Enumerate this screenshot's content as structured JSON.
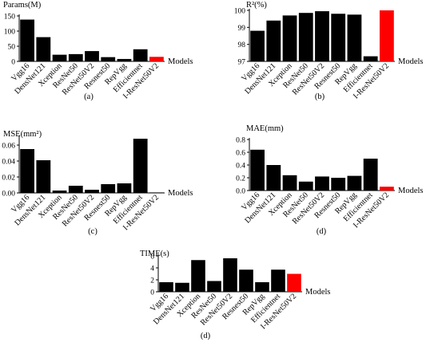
{
  "chart_data": [
    {
      "id": "params",
      "type": "bar",
      "title": "Params(M)",
      "xlabel": "Models",
      "panel_label": "(a)",
      "categories": [
        "Vgg16",
        "DensNet121",
        "Xception",
        "ResNet50",
        "ResNet50V2",
        "Resnest50",
        "RepVgg",
        "Efficientnet",
        "I-ResNet50V2"
      ],
      "values": [
        138,
        80,
        22,
        24,
        34,
        14,
        8,
        40,
        15
      ],
      "ylim": [
        0,
        150
      ],
      "yticks": [
        0,
        50,
        100,
        150
      ],
      "highlight_color": "#ff0000",
      "highlight_index": 8,
      "bar_color": "#000000"
    },
    {
      "id": "r2",
      "type": "bar",
      "title": "R²(%)",
      "xlabel": "Models",
      "panel_label": "(b)",
      "categories": [
        "Vgg16",
        "DensNet121",
        "Xception",
        "ResNet50",
        "ResNet50V2",
        "Resnest50",
        "RepVgg",
        "Efficientnet",
        "I-ResNet50V2"
      ],
      "values": [
        98.8,
        99.4,
        99.7,
        99.85,
        99.95,
        99.8,
        99.75,
        97.3,
        100.0
      ],
      "ylim": [
        97,
        100
      ],
      "yticks": [
        97,
        98,
        99,
        100
      ],
      "highlight_color": "#ff0000",
      "highlight_index": 8,
      "bar_color": "#000000"
    },
    {
      "id": "mse",
      "type": "bar",
      "title": "MSE(mm²)",
      "xlabel": "Models",
      "panel_label": "(c)",
      "categories": [
        "Vgg16",
        "DensNet121",
        "Xception",
        "ResNet50",
        "ResNet50V2",
        "Resnest50",
        "RepVgg",
        "Efficientnet",
        "I-ResNet50V2"
      ],
      "values": [
        0.055,
        0.041,
        0.003,
        0.009,
        0.004,
        0.011,
        0.012,
        0.068,
        0.0005
      ],
      "ylim": [
        0,
        0.07
      ],
      "yticks": [
        "0.00",
        "0.02",
        "0.04",
        "0.06"
      ],
      "ytick_values": [
        0,
        0.02,
        0.04,
        0.06
      ],
      "highlight_color": "#000000",
      "highlight_index": 8,
      "bar_color": "#000000"
    },
    {
      "id": "mae",
      "type": "bar",
      "title": "MAE(mm)",
      "xlabel": "Models",
      "panel_label": "(d)",
      "categories": [
        "Vgg16",
        "DensNet121",
        "Xception",
        "ResNet50",
        "ResNet50V2",
        "Resnest50",
        "RepVgg",
        "Efficientnet",
        "I-ResNet50V2"
      ],
      "values": [
        0.64,
        0.4,
        0.24,
        0.14,
        0.22,
        0.2,
        0.23,
        0.5,
        0.06
      ],
      "ylim": [
        0,
        0.8
      ],
      "yticks": [
        "0.0",
        "0.2",
        "0.4",
        "0.6",
        "0.8"
      ],
      "ytick_values": [
        0,
        0.2,
        0.4,
        0.6,
        0.8
      ],
      "highlight_color": "#ff0000",
      "highlight_index": 8,
      "bar_color": "#000000"
    },
    {
      "id": "time",
      "type": "bar",
      "title": "TIME(s)",
      "xlabel": "Models",
      "panel_label": "(d)",
      "categories": [
        "Vgg16",
        "DensNet121",
        "Xception",
        "ResNet50",
        "ResNet50V2",
        "Resnest50",
        "RepVgg",
        "Efficientnet",
        "I-ResNet50V2"
      ],
      "values": [
        1.6,
        1.5,
        5.3,
        1.8,
        5.6,
        3.7,
        1.6,
        3.7,
        3.0
      ],
      "ylim": [
        0,
        6
      ],
      "yticks": [
        0,
        2,
        4,
        6
      ],
      "highlight_color": "#ff0000",
      "highlight_index": 8,
      "bar_color": "#000000"
    }
  ]
}
